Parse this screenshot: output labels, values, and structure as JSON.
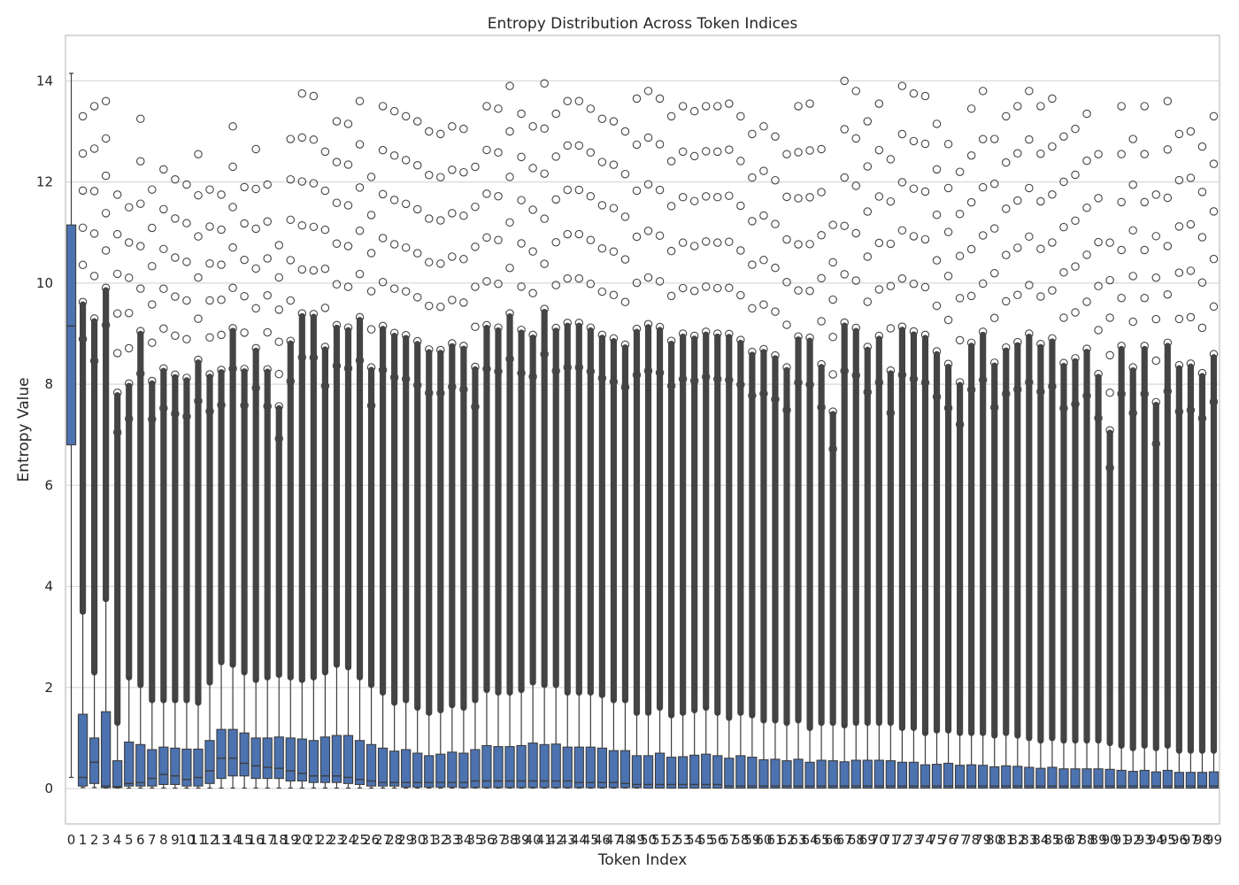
{
  "chart_data": {
    "type": "box",
    "title": "Entropy Distribution Across Token Indices",
    "xlabel": "Token Index",
    "ylabel": "Entropy Value",
    "ylim": [
      -0.7,
      14.9
    ],
    "yticks": [
      0,
      2,
      4,
      6,
      8,
      10,
      12,
      14
    ],
    "grid": true,
    "box_color": "#4c72b0",
    "line_color": "#3d3d3d",
    "categories": [
      "0",
      "1",
      "2",
      "3",
      "4",
      "5",
      "6",
      "7",
      "8",
      "9",
      "10",
      "11",
      "12",
      "13",
      "14",
      "15",
      "16",
      "17",
      "18",
      "19",
      "20",
      "21",
      "22",
      "23",
      "24",
      "25",
      "26",
      "27",
      "28",
      "29",
      "30",
      "31",
      "32",
      "33",
      "34",
      "35",
      "36",
      "37",
      "38",
      "39",
      "40",
      "41",
      "42",
      "43",
      "44",
      "45",
      "46",
      "47",
      "48",
      "49",
      "50",
      "51",
      "52",
      "53",
      "54",
      "55",
      "56",
      "57",
      "58",
      "59",
      "60",
      "61",
      "62",
      "63",
      "64",
      "65",
      "66",
      "67",
      "68",
      "69",
      "70",
      "71",
      "72",
      "73",
      "74",
      "75",
      "76",
      "77",
      "78",
      "79",
      "80",
      "81",
      "82",
      "83",
      "84",
      "85",
      "86",
      "87",
      "88",
      "89",
      "90",
      "91",
      "92",
      "93",
      "94",
      "95",
      "96",
      "97",
      "98",
      "99"
    ],
    "q1": [
      6.8,
      0.05,
      0.1,
      0.02,
      0.02,
      0.05,
      0.05,
      0.05,
      0.08,
      0.08,
      0.05,
      0.05,
      0.1,
      0.2,
      0.25,
      0.25,
      0.2,
      0.2,
      0.2,
      0.15,
      0.15,
      0.12,
      0.12,
      0.12,
      0.1,
      0.08,
      0.05,
      0.05,
      0.05,
      0.03,
      0.03,
      0.03,
      0.03,
      0.03,
      0.02,
      0.02,
      0.02,
      0.02,
      0.02,
      0.02,
      0.02,
      0.02,
      0.02,
      0.02,
      0.02,
      0.02,
      0.02,
      0.02,
      0.02,
      0.02,
      0.01,
      0.01,
      0.01,
      0.01,
      0.01,
      0.01,
      0.01,
      0.01,
      0.01,
      0.01,
      0.01,
      0.01,
      0.01,
      0.01,
      0.01,
      0.01,
      0.01,
      0.01,
      0.01,
      0.01,
      0.01,
      0.01,
      0.01,
      0.01,
      0.01,
      0.01,
      0.01,
      0.01,
      0.01,
      0.01,
      0.01,
      0.01,
      0.01,
      0.01,
      0.01,
      0.01,
      0.01,
      0.01,
      0.01,
      0.01,
      0.01,
      0.01,
      0.01,
      0.01,
      0.01,
      0.01,
      0.01,
      0.01,
      0.01,
      0.01
    ],
    "median": [
      9.15,
      0.22,
      0.52,
      0.05,
      0.04,
      0.1,
      0.12,
      0.2,
      0.28,
      0.25,
      0.18,
      0.22,
      0.35,
      0.6,
      0.6,
      0.5,
      0.45,
      0.42,
      0.4,
      0.35,
      0.3,
      0.25,
      0.25,
      0.25,
      0.22,
      0.18,
      0.15,
      0.12,
      0.12,
      0.12,
      0.12,
      0.12,
      0.12,
      0.12,
      0.12,
      0.15,
      0.15,
      0.15,
      0.15,
      0.15,
      0.15,
      0.15,
      0.15,
      0.15,
      0.12,
      0.12,
      0.12,
      0.12,
      0.1,
      0.08,
      0.08,
      0.08,
      0.08,
      0.08,
      0.08,
      0.08,
      0.08,
      0.05,
      0.05,
      0.05,
      0.05,
      0.05,
      0.05,
      0.05,
      0.05,
      0.05,
      0.05,
      0.05,
      0.05,
      0.05,
      0.05,
      0.05,
      0.05,
      0.05,
      0.05,
      0.05,
      0.05,
      0.05,
      0.05,
      0.05,
      0.05,
      0.05,
      0.05,
      0.05,
      0.05,
      0.05,
      0.05,
      0.05,
      0.05,
      0.05,
      0.05,
      0.05,
      0.05,
      0.05,
      0.05,
      0.05,
      0.05,
      0.05,
      0.05,
      0.05
    ],
    "q3": [
      11.15,
      1.47,
      1.0,
      1.52,
      0.55,
      0.92,
      0.87,
      0.77,
      0.82,
      0.8,
      0.78,
      0.78,
      0.95,
      1.17,
      1.17,
      1.1,
      1.0,
      1.0,
      1.02,
      1.0,
      0.98,
      0.95,
      1.02,
      1.05,
      1.05,
      0.95,
      0.87,
      0.8,
      0.74,
      0.77,
      0.7,
      0.65,
      0.68,
      0.72,
      0.7,
      0.77,
      0.85,
      0.83,
      0.83,
      0.85,
      0.9,
      0.87,
      0.88,
      0.82,
      0.82,
      0.82,
      0.8,
      0.75,
      0.75,
      0.65,
      0.65,
      0.7,
      0.62,
      0.63,
      0.66,
      0.68,
      0.65,
      0.6,
      0.65,
      0.62,
      0.57,
      0.58,
      0.55,
      0.58,
      0.52,
      0.56,
      0.55,
      0.53,
      0.56,
      0.56,
      0.56,
      0.55,
      0.52,
      0.52,
      0.47,
      0.48,
      0.5,
      0.46,
      0.47,
      0.46,
      0.43,
      0.45,
      0.44,
      0.42,
      0.4,
      0.42,
      0.39,
      0.39,
      0.39,
      0.39,
      0.38,
      0.36,
      0.34,
      0.36,
      0.33,
      0.36,
      0.32,
      0.32,
      0.32,
      0.33
    ],
    "whisker_low": [
      0.22,
      0.02,
      0.02,
      0.01,
      0.01,
      0.01,
      0.01,
      0.01,
      0.01,
      0.01,
      0.01,
      0.01,
      0.01,
      0.01,
      0.01,
      0.01,
      0.01,
      0.01,
      0.01,
      0.01,
      0.01,
      0.01,
      0.01,
      0.01,
      0.01,
      0.01,
      0.01,
      0.01,
      0.01,
      0.01,
      0.01,
      0.01,
      0.01,
      0.01,
      0.01,
      0.01,
      0.01,
      0.01,
      0.01,
      0.01,
      0.01,
      0.01,
      0.01,
      0.01,
      0.01,
      0.01,
      0.01,
      0.01,
      0.01,
      0.01,
      0.01,
      0.01,
      0.01,
      0.01,
      0.01,
      0.01,
      0.01,
      0.01,
      0.01,
      0.01,
      0.01,
      0.01,
      0.01,
      0.01,
      0.01,
      0.01,
      0.01,
      0.01,
      0.01,
      0.01,
      0.01,
      0.01,
      0.01,
      0.01,
      0.01,
      0.01,
      0.01,
      0.01,
      0.01,
      0.01,
      0.01,
      0.01,
      0.01,
      0.01,
      0.01,
      0.01,
      0.01,
      0.01,
      0.01,
      0.01,
      0.01,
      0.01,
      0.01,
      0.01,
      0.01,
      0.01,
      0.01,
      0.01,
      0.01,
      0.01
    ],
    "whisker_high": [
      14.15,
      3.5,
      2.3,
      3.75,
      1.3,
      2.2,
      2.05,
      1.75,
      1.75,
      1.75,
      1.75,
      1.7,
      2.1,
      2.5,
      2.45,
      2.3,
      2.15,
      2.2,
      2.25,
      2.2,
      2.15,
      2.2,
      2.3,
      2.45,
      2.4,
      2.2,
      2.05,
      1.9,
      1.7,
      1.75,
      1.6,
      1.5,
      1.55,
      1.65,
      1.6,
      1.75,
      1.95,
      1.9,
      1.9,
      1.95,
      2.1,
      2.05,
      2.05,
      1.9,
      1.9,
      1.9,
      1.85,
      1.75,
      1.75,
      1.5,
      1.5,
      1.6,
      1.45,
      1.5,
      1.55,
      1.6,
      1.5,
      1.4,
      1.5,
      1.45,
      1.35,
      1.35,
      1.3,
      1.35,
      1.2,
      1.3,
      1.3,
      1.25,
      1.3,
      1.3,
      1.3,
      1.3,
      1.2,
      1.2,
      1.1,
      1.15,
      1.15,
      1.1,
      1.1,
      1.1,
      1.05,
      1.1,
      1.05,
      1.0,
      0.95,
      1.0,
      0.95,
      0.95,
      0.95,
      0.95,
      0.9,
      0.85,
      0.8,
      0.85,
      0.8,
      0.85,
      0.75,
      0.75,
      0.75,
      0.75
    ],
    "outlier_top": [
      14.15,
      13.3,
      13.5,
      13.6,
      11.75,
      11.5,
      13.25,
      11.85,
      12.25,
      12.05,
      11.95,
      12.55,
      11.85,
      11.75,
      13.1,
      11.9,
      12.65,
      11.95,
      10.75,
      12.85,
      13.75,
      13.7,
      12.6,
      13.2,
      13.15,
      13.6,
      12.1,
      13.5,
      13.4,
      13.3,
      13.2,
      13.0,
      12.95,
      13.1,
      13.05,
      12.3,
      13.5,
      13.45,
      13.9,
      13.35,
      13.1,
      13.95,
      13.35,
      13.6,
      13.6,
      13.45,
      13.25,
      13.2,
      13.0,
      13.65,
      13.8,
      13.65,
      13.3,
      13.5,
      13.4,
      13.5,
      13.5,
      13.55,
      13.3,
      12.95,
      13.1,
      12.9,
      12.55,
      13.5,
      13.55,
      12.65,
      11.15,
      14.0,
      13.8,
      13.2,
      13.55,
      12.45,
      13.9,
      13.75,
      13.7,
      13.15,
      12.75,
      12.2,
      13.45,
      13.8,
      12.85,
      13.3,
      13.5,
      13.8,
      13.5,
      13.65,
      12.9,
      13.05,
      13.35,
      12.55,
      10.8,
      13.5,
      12.85,
      13.5,
      11.75,
      13.6,
      12.95,
      13.0,
      12.7,
      13.3
    ]
  }
}
